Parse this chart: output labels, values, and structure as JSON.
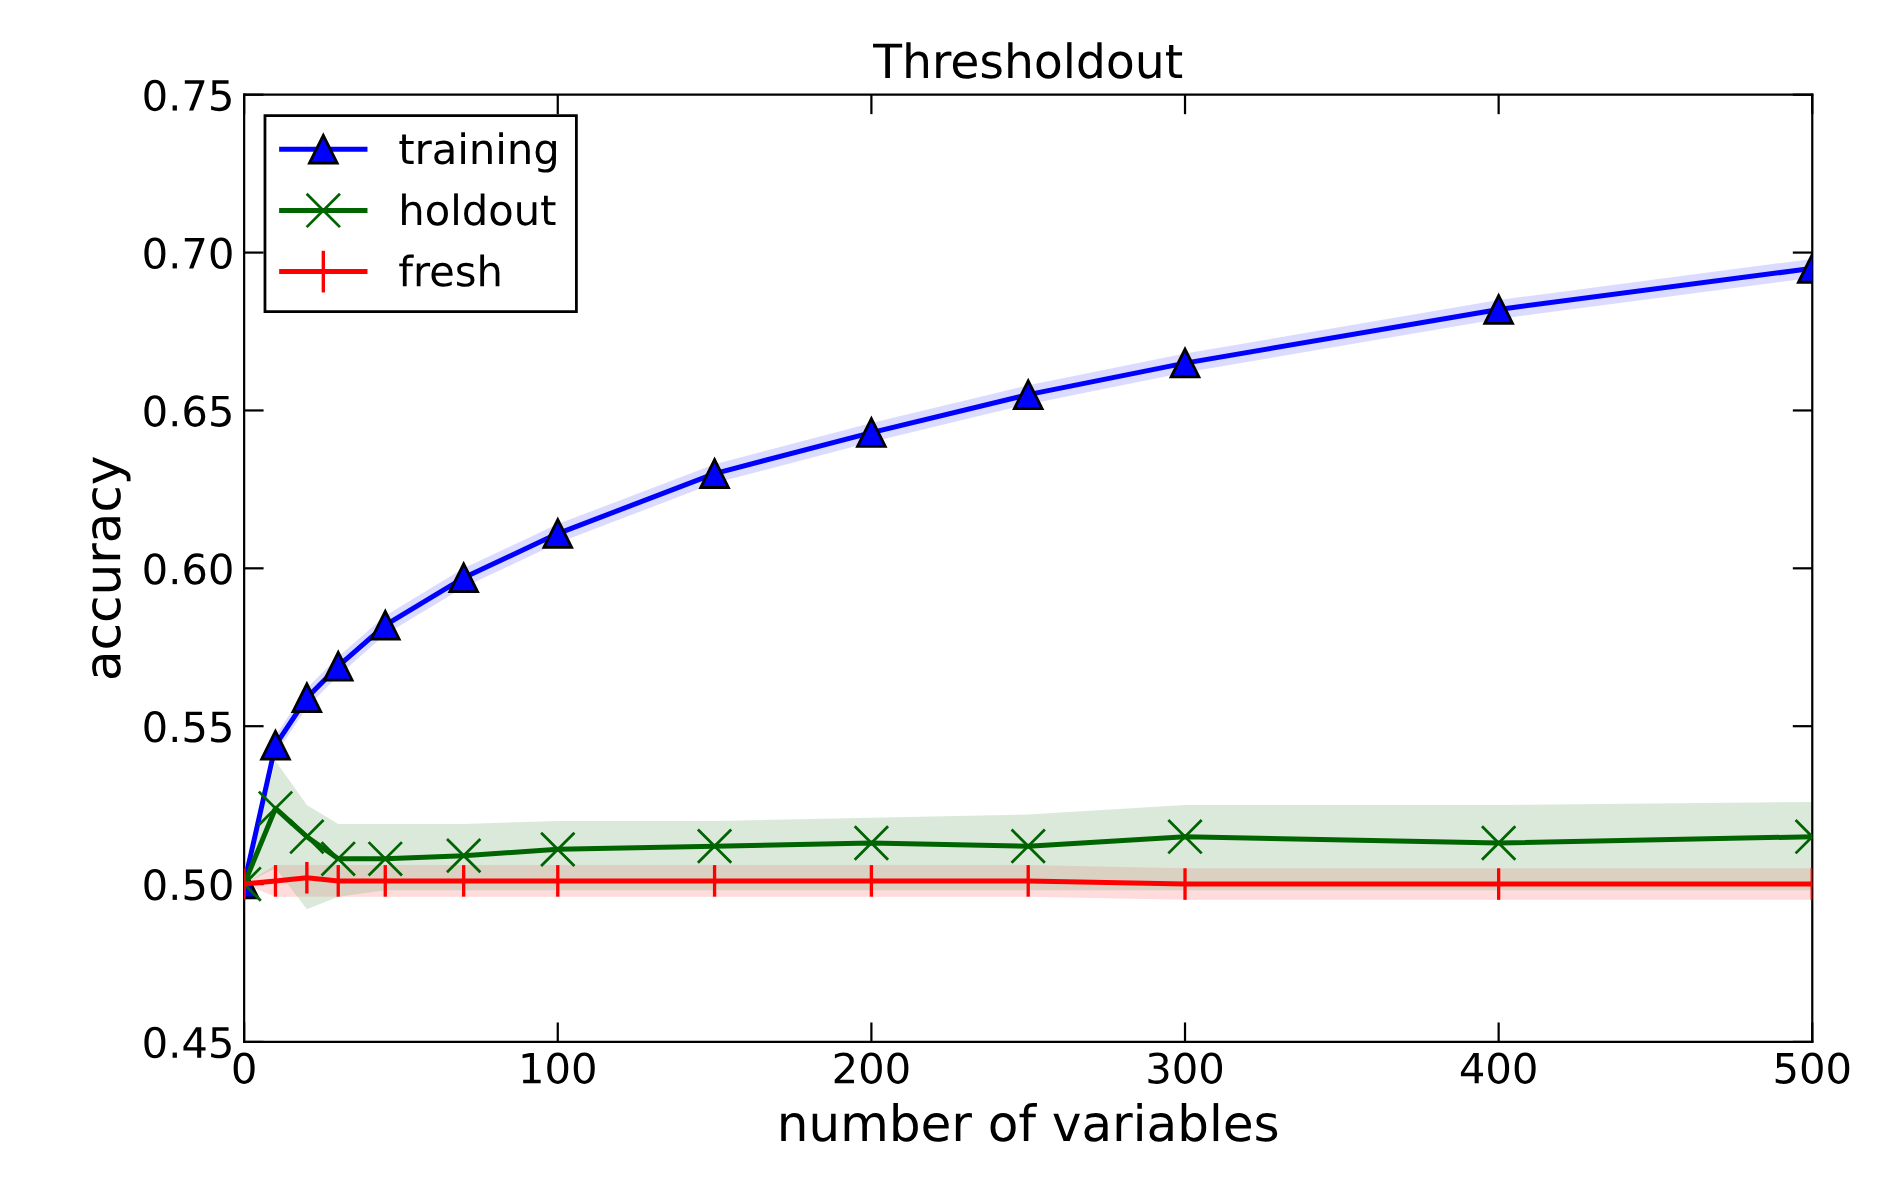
{
  "chart_data": {
    "type": "line",
    "title": "Thresholdout",
    "xlabel": "number of variables",
    "ylabel": "accuracy",
    "x": [
      0,
      10,
      20,
      30,
      45,
      70,
      100,
      150,
      200,
      250,
      300,
      400,
      500
    ],
    "xlim": [
      0,
      500
    ],
    "xticks": [
      0,
      100,
      200,
      300,
      400,
      500
    ],
    "ylim": [
      0.45,
      0.75
    ],
    "yticks": [
      0.45,
      {
        "value": 0.5,
        "label": "0.50"
      },
      0.55,
      {
        "value": 0.6,
        "label": "0.60"
      },
      0.65,
      {
        "value": 0.7,
        "label": "0.70"
      },
      0.75
    ],
    "grid": false,
    "legend": "top left",
    "series": [
      {
        "name": "training",
        "color": "#0000ff",
        "marker": "triangle",
        "values": [
          0.5,
          0.544,
          0.559,
          0.569,
          0.582,
          0.597,
          0.611,
          0.63,
          0.643,
          0.655,
          0.665,
          0.682,
          0.695
        ],
        "lower": [
          0.5,
          0.541,
          0.556,
          0.566,
          0.579,
          0.594,
          0.608,
          0.627,
          0.64,
          0.652,
          0.662,
          0.679,
          0.692
        ],
        "upper": [
          0.5,
          0.547,
          0.562,
          0.572,
          0.585,
          0.6,
          0.614,
          0.633,
          0.646,
          0.658,
          0.668,
          0.685,
          0.698
        ]
      },
      {
        "name": "holdout",
        "color": "#006400",
        "marker": "cross",
        "values": [
          0.5,
          0.524,
          0.515,
          0.508,
          0.508,
          0.509,
          0.511,
          0.512,
          0.513,
          0.512,
          0.515,
          0.513,
          0.515
        ],
        "lower": [
          0.5,
          0.505,
          0.492,
          0.496,
          0.498,
          0.498,
          0.498,
          0.498,
          0.498,
          0.498,
          0.498,
          0.498,
          0.498
        ],
        "upper": [
          0.5,
          0.539,
          0.525,
          0.519,
          0.519,
          0.519,
          0.52,
          0.52,
          0.521,
          0.522,
          0.525,
          0.525,
          0.526
        ]
      },
      {
        "name": "fresh",
        "color": "#ff0000",
        "marker": "none",
        "values": [
          0.5,
          0.501,
          0.502,
          0.501,
          0.501,
          0.501,
          0.501,
          0.501,
          0.501,
          0.501,
          0.5,
          0.5,
          0.5
        ],
        "errors": [
          0.005,
          0.005,
          0.005,
          0.005,
          0.005,
          0.005,
          0.005,
          0.005,
          0.005,
          0.005,
          0.005,
          0.005,
          0.005
        ],
        "lower": [
          0.5,
          0.496,
          0.496,
          0.496,
          0.496,
          0.496,
          0.496,
          0.496,
          0.496,
          0.496,
          0.495,
          0.495,
          0.495
        ],
        "upper": [
          0.5,
          0.506,
          0.506,
          0.506,
          0.506,
          0.506,
          0.506,
          0.506,
          0.506,
          0.506,
          0.505,
          0.505,
          0.505
        ]
      }
    ]
  }
}
